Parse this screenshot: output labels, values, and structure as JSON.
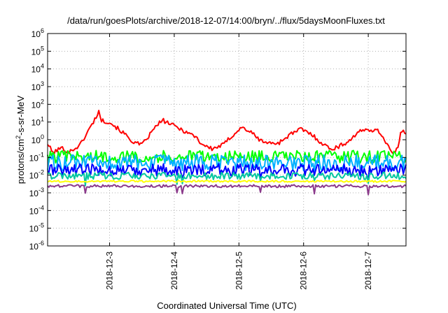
{
  "chart_data": {
    "type": "line",
    "title": "/data/run/goesPlots/archive/2018-12-07/14:00/bryn/../flux/5daysMoonFluxes.txt",
    "xlabel": "Coordinated Universal Time (UTC)",
    "ylabel": {
      "prefix": "protons/cm",
      "sup": "2",
      "suffix": "-s-sr-MeV"
    },
    "y_scale": "log",
    "ylim": [
      1e-06,
      1000000.0
    ],
    "y_ticks": [
      {
        "value": 1e-06,
        "base": "10",
        "exp": "-6"
      },
      {
        "value": 1e-05,
        "base": "10",
        "exp": "-5"
      },
      {
        "value": 0.0001,
        "base": "10",
        "exp": "-4"
      },
      {
        "value": 0.001,
        "base": "10",
        "exp": "-3"
      },
      {
        "value": 0.01,
        "base": "10",
        "exp": "-2"
      },
      {
        "value": 0.1,
        "base": "10",
        "exp": "-1"
      },
      {
        "value": 1,
        "base": "10",
        "exp": "0"
      },
      {
        "value": 10,
        "base": "10",
        "exp": "1"
      },
      {
        "value": 100,
        "base": "10",
        "exp": "2"
      },
      {
        "value": 1000,
        "base": "10",
        "exp": "3"
      },
      {
        "value": 10000,
        "base": "10",
        "exp": "4"
      },
      {
        "value": 100000,
        "base": "10",
        "exp": "5"
      },
      {
        "value": 1000000,
        "base": "10",
        "exp": "6"
      }
    ],
    "xlim": [
      "2018-12-02T01:00",
      "2018-12-07T14:00"
    ],
    "x_ticks": [
      "2018-12-3",
      "2018-12-4",
      "2018-12-5",
      "2018-12-6",
      "2018-12-7"
    ],
    "x_tick_values": [
      "2018-12-03T00:00",
      "2018-12-04T00:00",
      "2018-12-05T00:00",
      "2018-12-06T00:00",
      "2018-12-07T00:00"
    ],
    "grid": true,
    "series": [
      {
        "color": "#ff0000",
        "noise": 0.12,
        "spikes": [],
        "points": [
          [
            "2018-12-02T01:00",
            0.6
          ],
          [
            "2018-12-02T03:00",
            0.18
          ],
          [
            "2018-12-02T06:00",
            0.35
          ],
          [
            "2018-12-02T09:00",
            0.2
          ],
          [
            "2018-12-02T13:00",
            0.5
          ],
          [
            "2018-12-02T16:00",
            3
          ],
          [
            "2018-12-02T18:00",
            10
          ],
          [
            "2018-12-02T20:00",
            40
          ],
          [
            "2018-12-02T21:00",
            12
          ],
          [
            "2018-12-03T00:00",
            10
          ],
          [
            "2018-12-03T05:00",
            2.5
          ],
          [
            "2018-12-03T09:00",
            0.7
          ],
          [
            "2018-12-03T12:00",
            0.5
          ],
          [
            "2018-12-03T15:00",
            2
          ],
          [
            "2018-12-03T18:00",
            8
          ],
          [
            "2018-12-03T20:00",
            12
          ],
          [
            "2018-12-04T00:00",
            6
          ],
          [
            "2018-12-04T04:00",
            3
          ],
          [
            "2018-12-04T08:00",
            1.5
          ],
          [
            "2018-12-04T10:00",
            0.6
          ],
          [
            "2018-12-04T14:00",
            0.3
          ],
          [
            "2018-12-04T18:00",
            0.5
          ],
          [
            "2018-12-04T22:00",
            2
          ],
          [
            "2018-12-05T01:00",
            5
          ],
          [
            "2018-12-05T04:00",
            3
          ],
          [
            "2018-12-05T08:00",
            0.9
          ],
          [
            "2018-12-05T12:00",
            0.6
          ],
          [
            "2018-12-05T15:00",
            0.7
          ],
          [
            "2018-12-05T19:00",
            2
          ],
          [
            "2018-12-05T23:00",
            4
          ],
          [
            "2018-12-06T03:00",
            2
          ],
          [
            "2018-12-06T07:00",
            0.6
          ],
          [
            "2018-12-06T10:00",
            0.3
          ],
          [
            "2018-12-06T13:00",
            0.4
          ],
          [
            "2018-12-06T17:00",
            0.9
          ],
          [
            "2018-12-06T20:00",
            2.5
          ],
          [
            "2018-12-07T00:00",
            4
          ],
          [
            "2018-12-07T04:00",
            3
          ],
          [
            "2018-12-07T07:00",
            0.6
          ],
          [
            "2018-12-07T09:00",
            0.15
          ],
          [
            "2018-12-07T11:00",
            0.3
          ],
          [
            "2018-12-07T12:00",
            3
          ],
          [
            "2018-12-07T14:00",
            2.5
          ]
        ]
      },
      {
        "color": "#00ff00",
        "noise": 0.35,
        "spikes": [],
        "points": [
          [
            "2018-12-02T01:00",
            0.11
          ],
          [
            "2018-12-07T14:00",
            0.11
          ]
        ]
      },
      {
        "color": "#00b0ff",
        "noise": 0.45,
        "spikes": [
          "2018-12-02T15:00",
          "2018-12-04T01:00",
          "2018-12-04T03:00",
          "2018-12-05T08:00",
          "2018-12-06T04:00",
          "2018-12-07T00:00"
        ],
        "points": [
          [
            "2018-12-02T01:00",
            0.05
          ],
          [
            "2018-12-07T14:00",
            0.05
          ]
        ]
      },
      {
        "color": "#0000ff",
        "noise": 0.35,
        "spikes": [
          "2018-12-02T15:00",
          "2018-12-04T01:00",
          "2018-12-04T03:00",
          "2018-12-05T08:00",
          "2018-12-06T04:00",
          "2018-12-07T00:00"
        ],
        "points": [
          [
            "2018-12-02T01:00",
            0.02
          ],
          [
            "2018-12-07T14:00",
            0.02
          ]
        ]
      },
      {
        "color": "#00c8a0",
        "noise": 0.2,
        "spikes": [
          "2018-12-02T15:00",
          "2018-12-04T01:00",
          "2018-12-04T03:00",
          "2018-12-05T08:00",
          "2018-12-06T04:00",
          "2018-12-07T00:00"
        ],
        "points": [
          [
            "2018-12-02T01:00",
            0.009
          ],
          [
            "2018-12-07T14:00",
            0.009
          ]
        ]
      },
      {
        "color": "#ffff00",
        "noise": 0.05,
        "spikes": [],
        "points": [
          [
            "2018-12-02T01:00",
            0.0045
          ],
          [
            "2018-12-07T14:00",
            0.0045
          ]
        ]
      },
      {
        "color": "#8b3a8b",
        "noise": 0.08,
        "spikes": [
          "2018-12-02T15:00",
          "2018-12-04T01:00",
          "2018-12-04T03:00",
          "2018-12-05T08:00",
          "2018-12-06T04:00",
          "2018-12-07T00:00"
        ],
        "points": [
          [
            "2018-12-02T01:00",
            0.0024
          ],
          [
            "2018-12-07T14:00",
            0.0024
          ]
        ]
      }
    ]
  }
}
